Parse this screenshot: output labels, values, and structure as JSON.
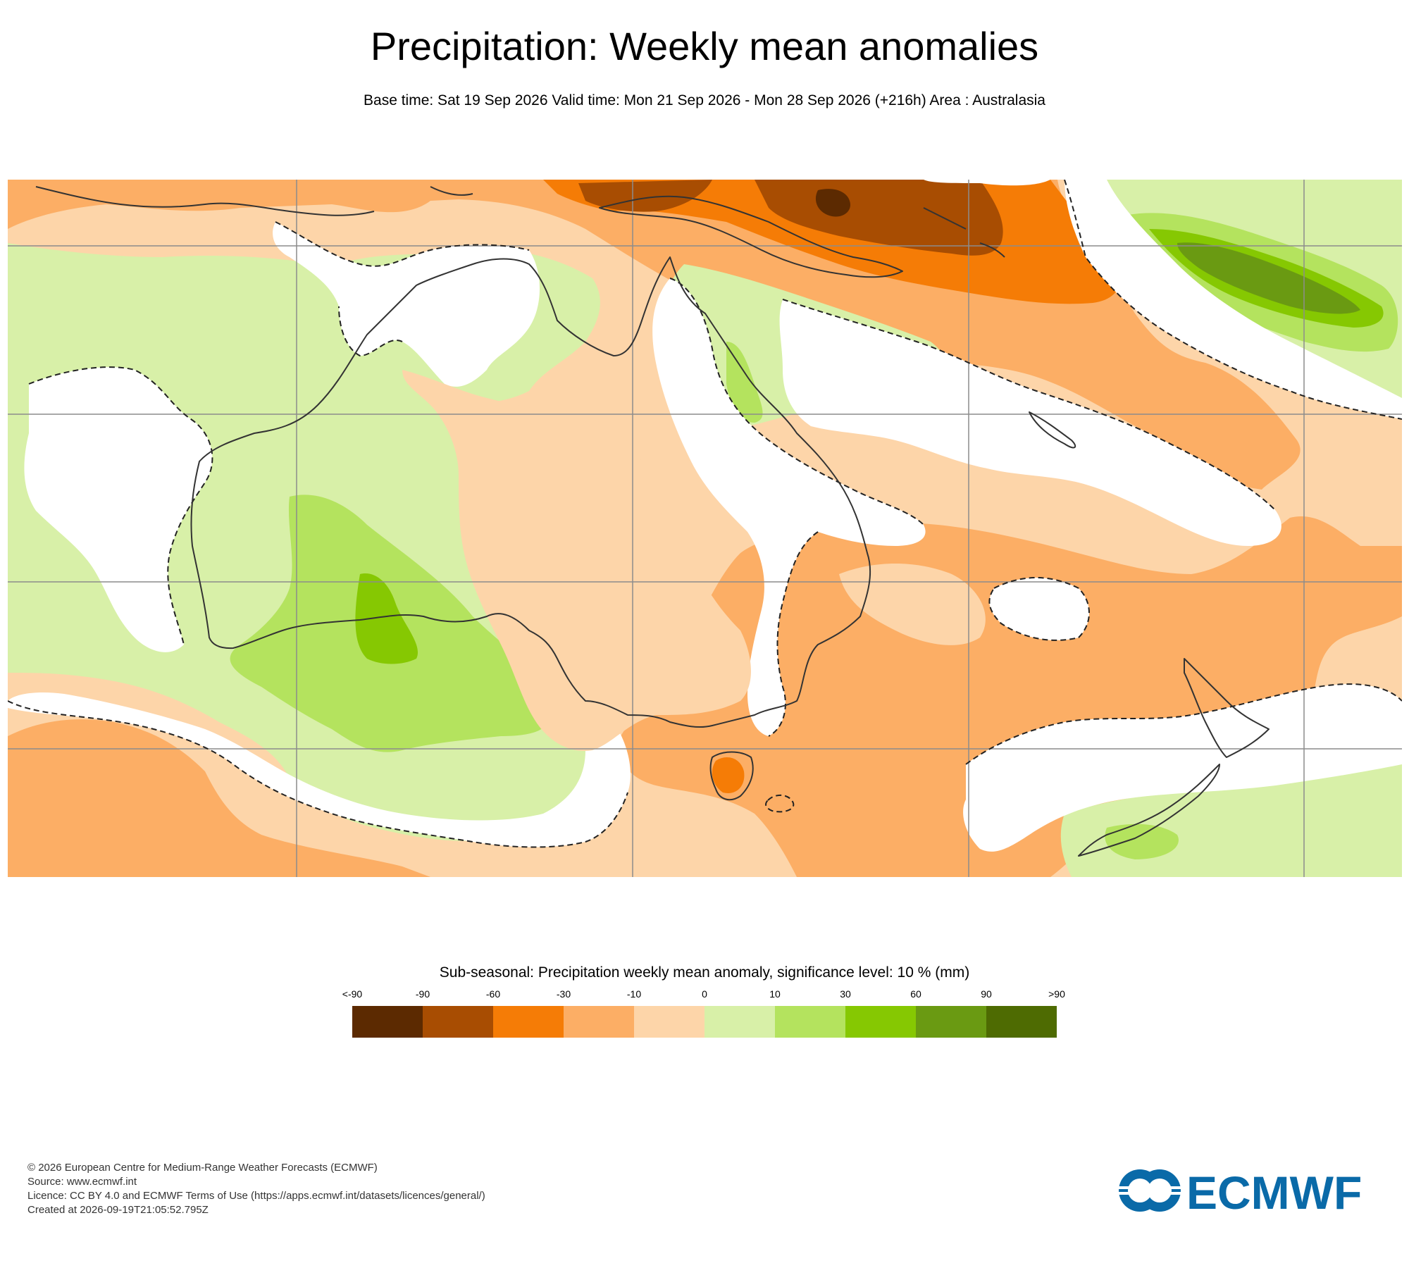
{
  "header": {
    "title": "Precipitation: Weekly mean anomalies",
    "subtitle": "Base time: Sat 19 Sep 2026 Valid time: Mon 21 Sep 2026 - Mon 28 Sep 2026 (+216h) Area : Australasia"
  },
  "map": {
    "region": "Australasia",
    "colors": {
      "strong_dry": "#f57c06",
      "moderate_dry": "#fcae65",
      "slight_dry": "#fdd5a9",
      "insignificant": "#ffffff",
      "slight_wet": "#d8f0a8",
      "moderate_wet": "#b4e35e",
      "strong_wet": "#86c802",
      "very_strong_wet": "#6a9a12",
      "very_strong_dry": "#a84d02",
      "extreme_dry": "#5c2a01",
      "coastline": "#333333",
      "graticule": "#8c8c8c",
      "significance_contour": "#222222"
    }
  },
  "legend": {
    "title": "Sub-seasonal: Precipitation weekly mean anomaly, significance level: 10 % (mm)",
    "ticks": [
      "<-90",
      "-90",
      "-60",
      "-30",
      "-10",
      "0",
      "10",
      "30",
      "60",
      "90",
      ">90"
    ],
    "swatches": [
      "#5c2a01",
      "#a84d02",
      "#f57c06",
      "#fcae65",
      "#fdd5a9",
      "#d8f0a8",
      "#b4e35e",
      "#86c802",
      "#6a9a12",
      "#4e6b02"
    ]
  },
  "footer": {
    "copyright": "© 2026 European Centre for Medium-Range Weather Forecasts (ECMWF)",
    "source": "Source: www.ecmwf.int",
    "licence": "Licence: CC BY 4.0 and ECMWF Terms of Use (https://apps.ecmwf.int/datasets/licences/general/)",
    "created": "Created at 2026-09-19T21:05:52.795Z",
    "logo_text": "ECMWF",
    "logo_color": "#0a6aa8"
  }
}
